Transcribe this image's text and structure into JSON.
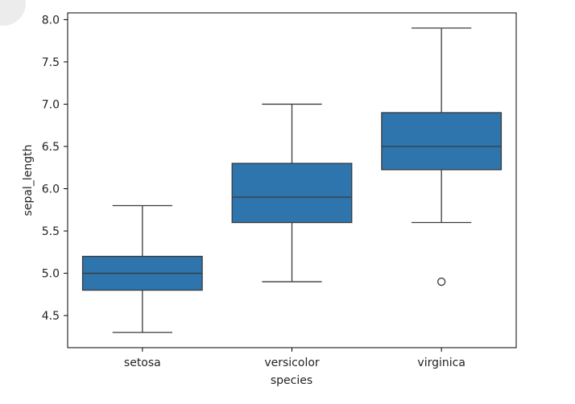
{
  "colors": {
    "box_fill": "#2e74ad",
    "line": "#3b3b3b",
    "axis": "#000000",
    "background": "#ffffff"
  },
  "chart_data": {
    "type": "box",
    "xlabel": "species",
    "ylabel": "sepal_length",
    "categories": [
      "setosa",
      "versicolor",
      "virginica"
    ],
    "yticks": [
      "4.5",
      "5.0",
      "5.5",
      "6.0",
      "6.5",
      "7.0",
      "7.5",
      "8.0"
    ],
    "ylim": [
      4.12,
      8.08
    ],
    "grid": false,
    "boxes": [
      {
        "category": "setosa",
        "whisker_low": 4.3,
        "q1": 4.8,
        "median": 5.0,
        "q3": 5.2,
        "whisker_high": 5.8,
        "outliers": []
      },
      {
        "category": "versicolor",
        "whisker_low": 4.9,
        "q1": 5.6,
        "median": 5.9,
        "q3": 6.3,
        "whisker_high": 7.0,
        "outliers": []
      },
      {
        "category": "virginica",
        "whisker_low": 5.6,
        "q1": 6.225,
        "median": 6.5,
        "q3": 6.9,
        "whisker_high": 7.9,
        "outliers": [
          4.9
        ]
      }
    ]
  }
}
